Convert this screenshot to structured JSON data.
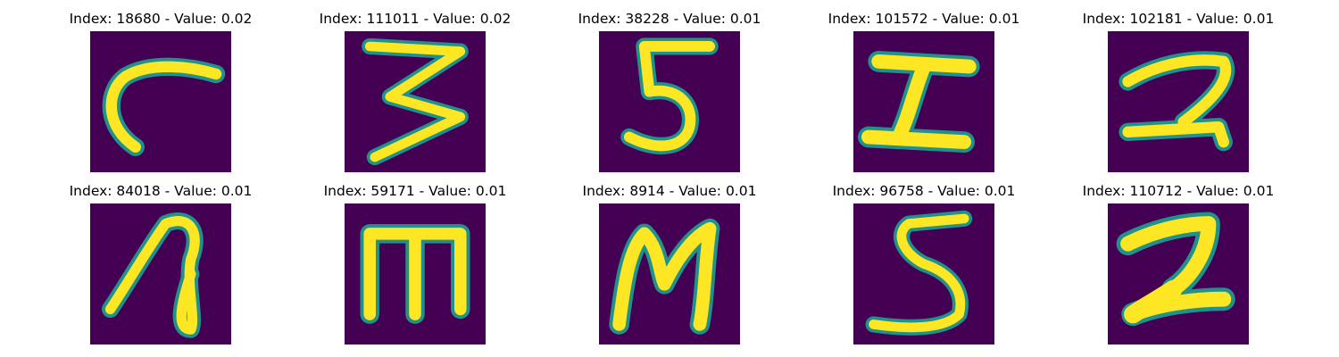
{
  "figure": {
    "grid_rows": 2,
    "grid_cols": 5,
    "colormap": "viridis",
    "background_color": "#440154",
    "stroke_color": "#fde725",
    "edge_color": "#21918c"
  },
  "panels": [
    {
      "title": "Index: 18680 - Value: 0.02",
      "glyph": "C"
    },
    {
      "title": "Index: 111011 - Value: 0.02",
      "glyph": "3"
    },
    {
      "title": "Index: 38228 - Value: 0.01",
      "glyph": "5"
    },
    {
      "title": "Index: 101572 - Value: 0.01",
      "glyph": "I"
    },
    {
      "title": "Index: 102181 - Value: 0.01",
      "glyph": "2"
    },
    {
      "title": "Index: 84018 - Value: 0.01",
      "glyph": "a"
    },
    {
      "title": "Index: 59171 - Value: 0.01",
      "glyph": "m"
    },
    {
      "title": "Index: 8914 - Value: 0.01",
      "glyph": "M"
    },
    {
      "title": "Index: 96758 - Value: 0.01",
      "glyph": "5"
    },
    {
      "title": "Index: 110712 - Value: 0.01",
      "glyph": "2"
    }
  ]
}
